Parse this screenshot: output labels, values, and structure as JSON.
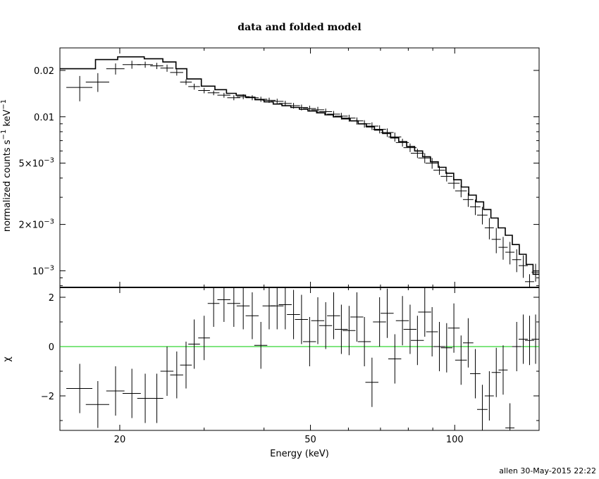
{
  "chart_data": {
    "type": "line",
    "title": "data and folded model",
    "xlabel": "Energy (keV)",
    "xscale": "log",
    "xlim": [
      15,
      150
    ],
    "x_ticks": [
      {
        "value": 20,
        "label": "20"
      },
      {
        "value": 50,
        "label": "50"
      },
      {
        "value": 100,
        "label": "100"
      }
    ],
    "credit": "allen 30-May-2015 22:22",
    "panels": [
      {
        "name": "spectrum",
        "ylabel": "normalized counts s^-1 keV^-1",
        "yscale": "log",
        "ylim": [
          0.00078,
          0.028
        ],
        "y_ticks": [
          {
            "value": 0.02,
            "label": "0.02"
          },
          {
            "value": 0.01,
            "label": "0.01"
          },
          {
            "value": 0.005,
            "mant": "5×10",
            "exp": "−3"
          },
          {
            "value": 0.002,
            "mant": "2×10",
            "exp": "−3"
          },
          {
            "value": 0.001,
            "mant": "10",
            "exp": "−3"
          }
        ],
        "data": [
          [
            16.5,
            0.0155,
            1.0,
            0.0126,
            0.0184
          ],
          [
            18.0,
            0.0168,
            0.9,
            0.0145,
            0.0192
          ],
          [
            19.6,
            0.0205,
            0.7,
            0.0188,
            0.0222
          ],
          [
            21.2,
            0.0218,
            0.7,
            0.0205,
            0.0231
          ],
          [
            22.6,
            0.0218,
            0.6,
            0.0208,
            0.0228
          ],
          [
            23.9,
            0.0214,
            0.5,
            0.0204,
            0.0224
          ],
          [
            25.1,
            0.0207,
            0.5,
            0.0196,
            0.0218
          ],
          [
            26.3,
            0.0194,
            0.5,
            0.0185,
            0.0203
          ],
          [
            27.5,
            0.0168,
            0.45,
            0.0161,
            0.0175
          ],
          [
            28.6,
            0.0157,
            0.45,
            0.015,
            0.0164
          ],
          [
            30.0,
            0.0148,
            0.45,
            0.0142,
            0.0154
          ],
          [
            31.4,
            0.0143,
            0.45,
            0.0138,
            0.0148
          ],
          [
            33.0,
            0.0138,
            0.5,
            0.0133,
            0.0143
          ],
          [
            34.6,
            0.0133,
            0.5,
            0.0128,
            0.0138
          ],
          [
            36.2,
            0.0135,
            0.5,
            0.013,
            0.014
          ],
          [
            37.8,
            0.0133,
            0.5,
            0.0128,
            0.0138
          ],
          [
            39.4,
            0.013,
            0.5,
            0.0125,
            0.0135
          ],
          [
            41.0,
            0.0128,
            0.5,
            0.0123,
            0.0133
          ],
          [
            42.6,
            0.0126,
            0.5,
            0.0121,
            0.0131
          ],
          [
            44.3,
            0.0122,
            0.5,
            0.0117,
            0.0127
          ],
          [
            46.1,
            0.0118,
            0.5,
            0.0113,
            0.0123
          ],
          [
            47.9,
            0.0115,
            0.5,
            0.011,
            0.012
          ],
          [
            49.8,
            0.0113,
            0.5,
            0.0108,
            0.0118
          ],
          [
            51.8,
            0.0111,
            0.5,
            0.0106,
            0.0116
          ],
          [
            53.8,
            0.0108,
            0.5,
            0.0103,
            0.0113
          ],
          [
            55.9,
            0.0104,
            0.5,
            0.0099,
            0.0109
          ],
          [
            58.0,
            0.0101,
            0.5,
            0.0096,
            0.0106
          ],
          [
            60.2,
            0.0098,
            0.5,
            0.0093,
            0.0103
          ],
          [
            62.5,
            0.0094,
            0.5,
            0.0089,
            0.0099
          ],
          [
            64.8,
            0.009,
            0.5,
            0.0085,
            0.0095
          ],
          [
            67.2,
            0.0087,
            0.5,
            0.0082,
            0.0092
          ],
          [
            69.7,
            0.0083,
            0.5,
            0.0078,
            0.0088
          ],
          [
            72.3,
            0.0079,
            0.5,
            0.0074,
            0.0084
          ],
          [
            75.0,
            0.0074,
            0.5,
            0.0069,
            0.0079
          ],
          [
            77.8,
            0.0068,
            0.5,
            0.0064,
            0.0072
          ],
          [
            80.7,
            0.0063,
            0.5,
            0.0059,
            0.0067
          ],
          [
            83.6,
            0.0058,
            0.5,
            0.0054,
            0.0062
          ],
          [
            86.6,
            0.0054,
            0.5,
            0.005,
            0.0058
          ],
          [
            89.7,
            0.005,
            0.5,
            0.0046,
            0.0054
          ],
          [
            92.9,
            0.0045,
            0.45,
            0.0042,
            0.0048
          ],
          [
            96.2,
            0.0041,
            0.45,
            0.0038,
            0.0044
          ],
          [
            99.6,
            0.0037,
            0.45,
            0.0034,
            0.004
          ],
          [
            103.1,
            0.0033,
            0.45,
            0.003,
            0.0036
          ],
          [
            106.7,
            0.0029,
            0.4,
            0.0026,
            0.0032
          ],
          [
            110.4,
            0.0026,
            0.4,
            0.0023,
            0.0029
          ],
          [
            114.2,
            0.0023,
            0.4,
            0.002,
            0.0026
          ],
          [
            118.1,
            0.0019,
            0.35,
            0.0016,
            0.0022
          ],
          [
            122.1,
            0.0016,
            0.35,
            0.0013,
            0.0019
          ],
          [
            126.2,
            0.00142,
            0.35,
            0.00118,
            0.00166
          ],
          [
            130.4,
            0.00132,
            0.35,
            0.0011,
            0.00154
          ],
          [
            134.7,
            0.00118,
            0.35,
            0.00098,
            0.00138
          ],
          [
            139.0,
            0.00108,
            0.35,
            0.0009,
            0.00126
          ],
          [
            143.3,
            0.00085,
            0.35,
            0.00075,
            0.00095
          ],
          [
            147.5,
            0.00098,
            0.3,
            0.00085,
            0.00111
          ]
        ],
        "model_step": [
          [
            15.0,
            0.0205
          ],
          [
            17.8,
            0.0235
          ],
          [
            19.8,
            0.0245
          ],
          [
            22.5,
            0.0238
          ],
          [
            24.6,
            0.0227
          ],
          [
            26.2,
            0.0205
          ],
          [
            27.6,
            0.0176
          ],
          [
            29.6,
            0.0158
          ],
          [
            31.6,
            0.015
          ],
          [
            33.4,
            0.0142
          ],
          [
            35.0,
            0.0138
          ],
          [
            36.6,
            0.0134
          ],
          [
            38.3,
            0.0129
          ],
          [
            40.0,
            0.0125
          ],
          [
            41.8,
            0.0121
          ],
          [
            43.6,
            0.0118
          ],
          [
            45.5,
            0.0115
          ],
          [
            47.4,
            0.0112
          ],
          [
            49.4,
            0.0109
          ],
          [
            51.5,
            0.0106
          ],
          [
            53.6,
            0.0103
          ],
          [
            55.8,
            0.01
          ],
          [
            58.1,
            0.0097
          ],
          [
            60.5,
            0.0094
          ],
          [
            62.9,
            0.009
          ],
          [
            65.4,
            0.0086
          ],
          [
            68.0,
            0.0082
          ],
          [
            70.7,
            0.0078
          ],
          [
            73.5,
            0.0073
          ],
          [
            76.4,
            0.0069
          ],
          [
            79.4,
            0.0064
          ],
          [
            82.5,
            0.006
          ],
          [
            85.7,
            0.0055
          ],
          [
            89.0,
            0.0051
          ],
          [
            92.4,
            0.0047
          ],
          [
            95.9,
            0.0043
          ],
          [
            99.5,
            0.0039
          ],
          [
            103.2,
            0.0035
          ],
          [
            107.0,
            0.0031
          ],
          [
            110.9,
            0.0028
          ],
          [
            114.9,
            0.0025
          ],
          [
            119.0,
            0.0022
          ],
          [
            123.2,
            0.0019
          ],
          [
            127.5,
            0.0017
          ],
          [
            131.9,
            0.00148
          ],
          [
            136.4,
            0.00128
          ],
          [
            141.0,
            0.0011
          ],
          [
            145.7,
            0.00095
          ],
          [
            150.0,
            0.00095
          ]
        ]
      },
      {
        "name": "residuals",
        "ylabel": "χ",
        "yscale": "linear",
        "ylim": [
          -3.4,
          2.4
        ],
        "y_ticks": [
          {
            "value": 2,
            "label": "2"
          },
          {
            "value": 0,
            "label": "0"
          },
          {
            "value": -2,
            "label": "−2"
          }
        ],
        "zero_line_color": "#00cc00",
        "data": [
          [
            16.5,
            -1.7,
            1.0,
            -2.7,
            -0.7
          ],
          [
            18.0,
            -2.35,
            0.9,
            -3.3,
            -1.4
          ],
          [
            19.6,
            -1.8,
            0.7,
            -2.8,
            -0.8
          ],
          [
            21.2,
            -1.9,
            0.7,
            -2.9,
            -0.9
          ],
          [
            22.6,
            -2.1,
            0.6,
            -3.1,
            -1.1
          ],
          [
            23.9,
            -2.1,
            0.5,
            -3.1,
            -1.1
          ],
          [
            25.1,
            -1.0,
            0.5,
            -2.0,
            0.0
          ],
          [
            26.3,
            -1.15,
            0.5,
            -2.1,
            -0.2
          ],
          [
            27.5,
            -0.75,
            0.45,
            -1.7,
            0.2
          ],
          [
            28.6,
            0.1,
            0.45,
            -0.9,
            1.1
          ],
          [
            30.0,
            0.35,
            0.45,
            -0.55,
            1.25
          ],
          [
            31.4,
            1.75,
            0.45,
            0.8,
            2.7
          ],
          [
            33.0,
            1.9,
            0.5,
            1.0,
            2.8
          ],
          [
            34.6,
            1.75,
            0.5,
            0.8,
            2.7
          ],
          [
            36.2,
            1.65,
            0.5,
            0.7,
            2.6
          ],
          [
            37.8,
            1.25,
            0.5,
            0.3,
            2.2
          ],
          [
            39.4,
            0.05,
            0.5,
            -0.9,
            1.0
          ],
          [
            41.0,
            1.65,
            0.5,
            0.7,
            2.6
          ],
          [
            42.6,
            1.65,
            0.5,
            0.7,
            2.6
          ],
          [
            44.3,
            1.7,
            0.5,
            0.7,
            2.7
          ],
          [
            46.1,
            1.3,
            0.5,
            0.3,
            2.3
          ],
          [
            47.9,
            1.1,
            0.5,
            0.1,
            2.1
          ],
          [
            49.8,
            0.2,
            0.5,
            -0.8,
            1.2
          ],
          [
            51.8,
            1.05,
            0.5,
            0.1,
            2.0
          ],
          [
            53.8,
            0.85,
            0.5,
            -0.1,
            1.8
          ],
          [
            55.9,
            1.25,
            0.5,
            0.3,
            2.2
          ],
          [
            58.0,
            0.7,
            0.5,
            -0.3,
            1.7
          ],
          [
            60.2,
            0.65,
            0.5,
            -0.35,
            1.65
          ],
          [
            62.5,
            1.2,
            0.5,
            0.2,
            2.2
          ],
          [
            64.8,
            0.2,
            0.5,
            -0.8,
            1.2
          ],
          [
            67.2,
            -1.45,
            0.5,
            -2.45,
            -0.45
          ],
          [
            69.7,
            1.0,
            0.5,
            0.0,
            2.0
          ],
          [
            72.3,
            1.35,
            0.5,
            0.35,
            2.35
          ],
          [
            75.0,
            -0.5,
            0.5,
            -1.5,
            0.5
          ],
          [
            77.8,
            1.05,
            0.5,
            0.05,
            2.05
          ],
          [
            80.7,
            0.7,
            0.5,
            -0.3,
            1.7
          ],
          [
            83.6,
            0.25,
            0.5,
            -0.75,
            1.25
          ],
          [
            86.6,
            1.4,
            0.5,
            0.4,
            2.4
          ],
          [
            89.7,
            0.6,
            0.45,
            -0.4,
            1.6
          ],
          [
            92.9,
            0.0,
            0.45,
            -1.0,
            1.0
          ],
          [
            96.2,
            -0.05,
            0.45,
            -1.05,
            0.95
          ],
          [
            99.6,
            0.75,
            0.45,
            -0.25,
            1.75
          ],
          [
            103.1,
            -0.55,
            0.45,
            -1.55,
            0.45
          ],
          [
            106.7,
            0.15,
            0.4,
            -0.85,
            1.15
          ],
          [
            110.4,
            -1.1,
            0.4,
            -2.1,
            -0.1
          ],
          [
            114.2,
            -2.55,
            0.4,
            -3.55,
            -1.55
          ],
          [
            118.1,
            -2.0,
            0.35,
            -3.0,
            -1.0
          ],
          [
            122.1,
            -1.05,
            0.35,
            -2.05,
            -0.05
          ],
          [
            126.2,
            -0.95,
            0.35,
            -1.95,
            0.05
          ],
          [
            130.4,
            -3.3,
            0.35,
            -4.3,
            -2.3
          ],
          [
            134.7,
            0.0,
            0.35,
            -1.0,
            1.0
          ],
          [
            139.0,
            0.3,
            0.35,
            -0.7,
            1.3
          ],
          [
            143.3,
            0.25,
            0.35,
            -0.75,
            1.25
          ],
          [
            147.5,
            0.3,
            0.3,
            -0.7,
            1.3
          ]
        ]
      }
    ]
  }
}
